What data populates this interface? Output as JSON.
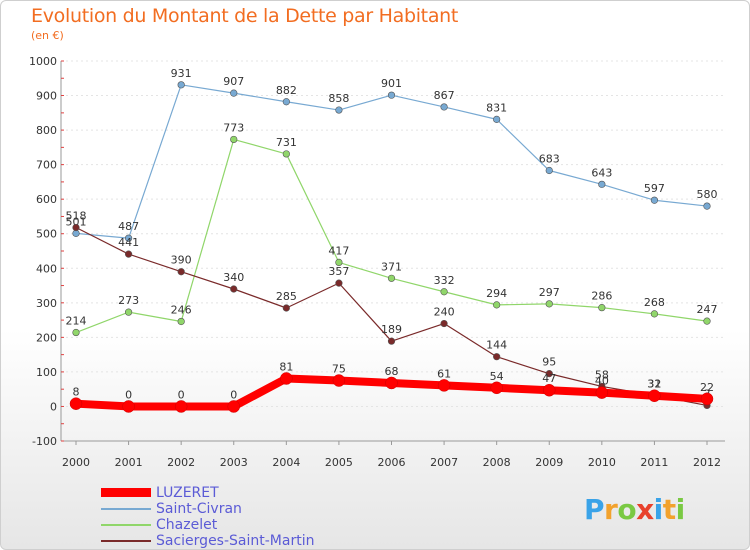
{
  "chart_data": {
    "type": "line",
    "title": "Evolution du Montant de la Dette par Habitant",
    "subtitle": "(en €)",
    "xlabel": "",
    "ylabel": "",
    "ylim": [
      -100,
      1000
    ],
    "yticks": [
      -100,
      0,
      100,
      200,
      300,
      400,
      500,
      600,
      700,
      800,
      900,
      1000
    ],
    "categories": [
      "2000",
      "2001",
      "2002",
      "2003",
      "2004",
      "2005",
      "2006",
      "2007",
      "2008",
      "2009",
      "2010",
      "2011",
      "2012"
    ],
    "series": [
      {
        "name": "LUZERET",
        "color": "#ff0000",
        "width": 8,
        "values": [
          8,
          0,
          0,
          0,
          81,
          75,
          68,
          61,
          54,
          47,
          40,
          31,
          22
        ]
      },
      {
        "name": "Saint-Civran",
        "color": "#78a9d2",
        "width": 1.2,
        "values": [
          501,
          487,
          931,
          907,
          882,
          858,
          901,
          867,
          831,
          683,
          643,
          597,
          580
        ]
      },
      {
        "name": "Chazelet",
        "color": "#90d66a",
        "width": 1.2,
        "values": [
          214,
          273,
          246,
          773,
          731,
          417,
          371,
          332,
          294,
          297,
          286,
          268,
          247
        ]
      },
      {
        "name": "Sacierges-Saint-Martin",
        "color": "#7a2a2a",
        "width": 1.2,
        "values": [
          518,
          441,
          390,
          340,
          285,
          357,
          189,
          240,
          144,
          95,
          58,
          32,
          3
        ]
      }
    ],
    "legend_position": "bottom-left"
  },
  "logo": {
    "text": [
      "P",
      "r",
      "o",
      "x",
      "i",
      "t",
      "i"
    ],
    "colors": [
      "#3aa3e8",
      "#f2a22d",
      "#7ac943",
      "#e8412c",
      "#3aa3e8",
      "#f2a22d",
      "#7ac943"
    ]
  }
}
